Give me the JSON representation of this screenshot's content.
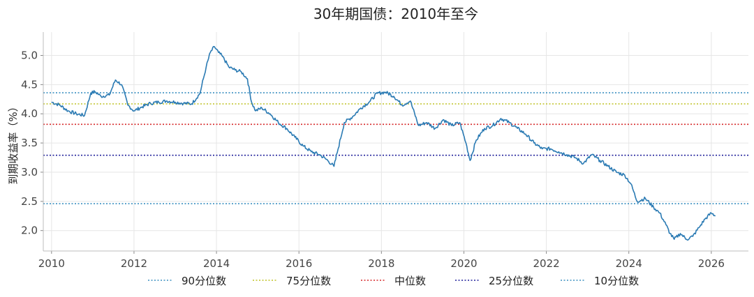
{
  "chart_data": {
    "type": "line",
    "title": "30年期国债：2010年至今",
    "xlabel": "",
    "ylabel": "到期收益率（%）",
    "xlim": [
      2009.8,
      2026.9
    ],
    "ylim": [
      1.65,
      5.4
    ],
    "x_ticks": [
      2010,
      2012,
      2014,
      2016,
      2018,
      2020,
      2022,
      2024,
      2026
    ],
    "y_ticks": [
      2.0,
      2.5,
      3.0,
      3.5,
      4.0,
      4.5,
      5.0
    ],
    "x_tick_labels": [
      "2010",
      "2012",
      "2014",
      "2016",
      "2018",
      "2020",
      "2022",
      "2024",
      "2026"
    ],
    "y_tick_labels": [
      "2.0",
      "2.5",
      "3.0",
      "3.5",
      "4.0",
      "4.5",
      "5.0"
    ],
    "grid": true,
    "legend_position": "bottom",
    "series": [
      {
        "color": "#2a7ab3",
        "x": [
          2010.0,
          2010.2,
          2010.4,
          2010.6,
          2010.8,
          2010.95,
          2011.05,
          2011.2,
          2011.4,
          2011.55,
          2011.7,
          2011.85,
          2012.0,
          2012.2,
          2012.4,
          2012.6,
          2012.8,
          2013.0,
          2013.2,
          2013.4,
          2013.6,
          2013.75,
          2013.85,
          2013.95,
          2014.05,
          2014.15,
          2014.3,
          2014.45,
          2014.6,
          2014.75,
          2014.85,
          2014.95,
          2015.1,
          2015.3,
          2015.5,
          2015.7,
          2015.9,
          2016.1,
          2016.3,
          2016.5,
          2016.7,
          2016.85,
          2016.95,
          2017.1,
          2017.3,
          2017.5,
          2017.7,
          2017.9,
          2018.1,
          2018.3,
          2018.5,
          2018.7,
          2018.9,
          2019.1,
          2019.3,
          2019.5,
          2019.7,
          2019.9,
          2020.05,
          2020.15,
          2020.3,
          2020.5,
          2020.7,
          2020.9,
          2021.1,
          2021.3,
          2021.5,
          2021.7,
          2021.9,
          2022.1,
          2022.3,
          2022.5,
          2022.7,
          2022.9,
          2023.1,
          2023.3,
          2023.5,
          2023.7,
          2023.9,
          2024.05,
          2024.2,
          2024.4,
          2024.6,
          2024.75,
          2024.9,
          2025.0,
          2025.1,
          2025.25,
          2025.4,
          2025.55,
          2025.7,
          2025.85,
          2026.0,
          2026.1
        ],
        "values": [
          4.2,
          4.15,
          4.05,
          4.0,
          3.97,
          4.35,
          4.38,
          4.3,
          4.32,
          4.58,
          4.5,
          4.15,
          4.05,
          4.12,
          4.18,
          4.2,
          4.22,
          4.2,
          4.18,
          4.17,
          4.35,
          4.8,
          5.05,
          5.15,
          5.05,
          4.98,
          4.8,
          4.75,
          4.72,
          4.6,
          4.2,
          4.05,
          4.1,
          4.0,
          3.85,
          3.75,
          3.6,
          3.45,
          3.35,
          3.3,
          3.2,
          3.1,
          3.4,
          3.85,
          3.95,
          4.1,
          4.2,
          4.35,
          4.37,
          4.3,
          4.15,
          4.22,
          3.8,
          3.85,
          3.75,
          3.9,
          3.8,
          3.85,
          3.5,
          3.2,
          3.55,
          3.75,
          3.8,
          3.92,
          3.85,
          3.75,
          3.65,
          3.5,
          3.4,
          3.4,
          3.35,
          3.3,
          3.25,
          3.15,
          3.3,
          3.2,
          3.1,
          3.0,
          2.95,
          2.8,
          2.5,
          2.55,
          2.4,
          2.3,
          2.1,
          1.95,
          1.85,
          1.95,
          1.85,
          1.9,
          2.05,
          2.2,
          2.3,
          2.25
        ]
      }
    ],
    "reference_lines": [
      {
        "name": "90分位数",
        "y": 4.36,
        "color": "#3a8fc0"
      },
      {
        "name": "75分位数",
        "y": 4.17,
        "color": "#bfc224"
      },
      {
        "name": "中位数",
        "y": 3.82,
        "color": "#d62728"
      },
      {
        "name": "25分位数",
        "y": 3.29,
        "color": "#1f1f9a"
      },
      {
        "name": "10分位数",
        "y": 2.46,
        "color": "#3a8fc0"
      }
    ]
  }
}
